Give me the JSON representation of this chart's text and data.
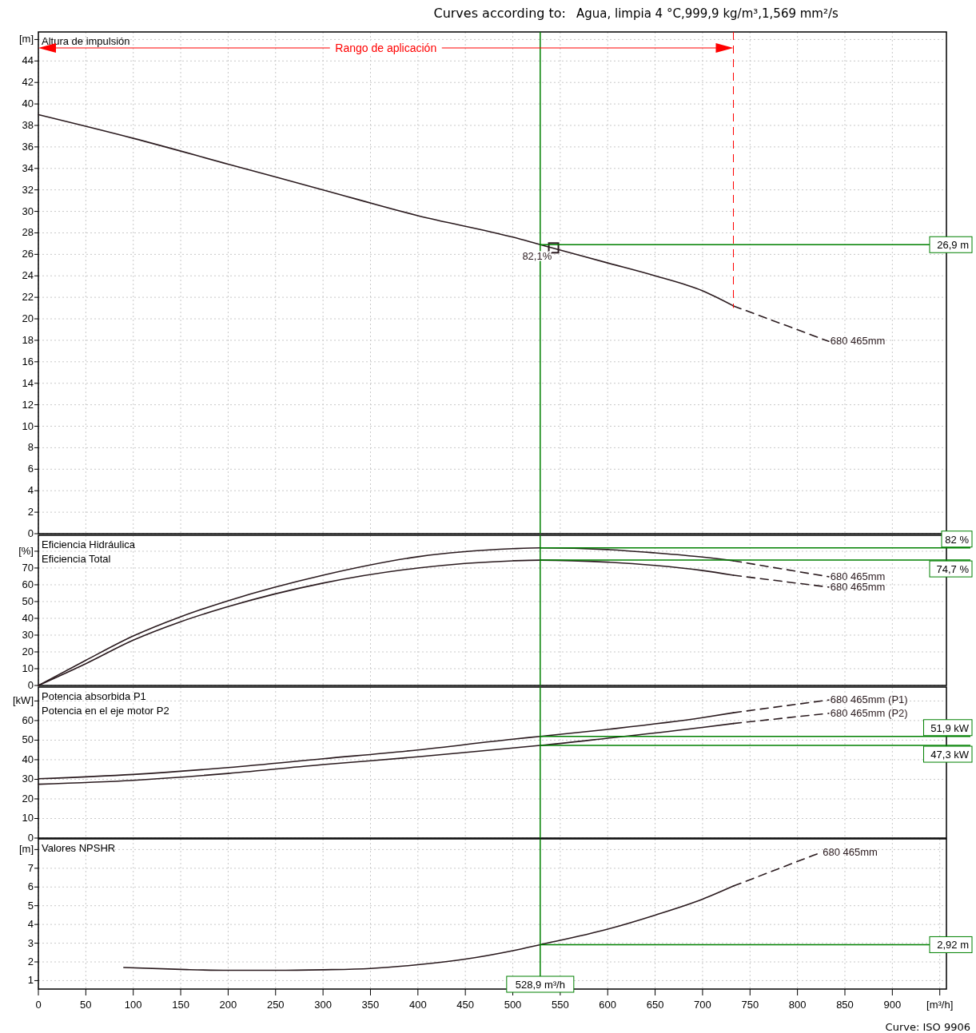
{
  "chart_data": [
    {
      "type": "line",
      "title": "Curves according to:",
      "subtitle": "Agua, limpia 4 °C,999,9 kg/m³,1,569 mm²/s",
      "ylabel": "Altura de impulsión",
      "xlim": [
        0,
        957
      ],
      "xticks": [
        0,
        50,
        100,
        150,
        200,
        250,
        300,
        350,
        400,
        450,
        500,
        550,
        600,
        650,
        700,
        750,
        800,
        850,
        900
      ],
      "ylim": [
        0,
        46.7
      ],
      "yticks": [
        0,
        2,
        4,
        6,
        8,
        10,
        12,
        14,
        16,
        18,
        20,
        22,
        24,
        26,
        28,
        30,
        32,
        34,
        36,
        38,
        40,
        42,
        44,
        {
          "value": 46,
          "label": "[m]"
        }
      ],
      "tick_labels": "y",
      "grid": true,
      "series": [
        {
          "color": "#2a1a1e",
          "x": [
            0,
            100,
            200,
            300,
            400,
            500,
            528.9,
            600,
            650,
            700,
            732.5
          ],
          "values": [
            39,
            36.8,
            34.4,
            32.0,
            29.6,
            27.6,
            26.9,
            25.2,
            24.0,
            22.6,
            21.2
          ]
        },
        {
          "name": "680 465mm",
          "color": "#2a1a1e",
          "line_style": "dashed",
          "x": [
            732.5,
            833
          ],
          "values": [
            21.2,
            17.9
          ]
        },
        {
          "type": "scatter",
          "marker": "square",
          "color": "#2a1a1e",
          "x": [
            543
          ],
          "values": [
            26.6
          ]
        }
      ],
      "ref_lines": [
        {
          "axis": "x",
          "value": 528.9,
          "color": "#008000"
        },
        {
          "axis": "y",
          "value": 26.9,
          "label": "26,9 m",
          "color": "#008000"
        },
        {
          "axis": "x",
          "value": 732.5,
          "label": "Rango de aplicación",
          "color": "#ff0000",
          "line_style": "dashed"
        }
      ],
      "annotations": [
        {
          "text": "82,1%",
          "x": 528.9,
          "y": 26.9
        }
      ]
    },
    {
      "type": "line",
      "ylabel": "Eficiencia Hidráulica\nEficiencia Total",
      "xlim": [
        0,
        957
      ],
      "xticks": [
        0,
        50,
        100,
        150,
        200,
        250,
        300,
        350,
        400,
        450,
        500,
        550,
        600,
        650,
        700,
        750,
        800,
        850,
        900
      ],
      "ylim": [
        0,
        89.5
      ],
      "yticks": [
        0,
        10,
        20,
        30,
        40,
        50,
        60,
        70,
        {
          "value": 80,
          "label": "[%]"
        }
      ],
      "tick_labels": "y",
      "grid": true,
      "series": [
        {
          "color": "#2a1a1e",
          "x": [
            0,
            50,
            100,
            150,
            200,
            300,
            400,
            500,
            528.9,
            600,
            650,
            700,
            732.5
          ],
          "values": [
            0,
            15,
            29.5,
            41,
            50.5,
            65.7,
            76.7,
            81.5,
            82,
            81,
            79,
            76.5,
            74.3
          ]
        },
        {
          "name": "680 465mm",
          "color": "#2a1a1e",
          "line_style": "dashed",
          "x": [
            732.5,
            833
          ],
          "values": [
            74.3,
            64.8
          ]
        },
        {
          "color": "#2a1a1e",
          "x": [
            0,
            50,
            100,
            150,
            200,
            300,
            400,
            500,
            528.9,
            600,
            650,
            700,
            732.5
          ],
          "values": [
            0,
            13,
            27,
            38,
            47,
            61,
            70,
            74.3,
            74.7,
            73.5,
            71.5,
            68.5,
            65.7
          ]
        },
        {
          "name": "680 465mm",
          "color": "#2a1a1e",
          "line_style": "dashed",
          "x": [
            732.5,
            833
          ],
          "values": [
            65.7,
            58.6
          ]
        }
      ],
      "ref_lines": [
        {
          "axis": "x",
          "value": 528.9,
          "color": "#008000"
        },
        {
          "axis": "y",
          "value": 82,
          "label": "82 %",
          "color": "#008000"
        },
        {
          "axis": "y",
          "value": 74.7,
          "label": "74,7 %",
          "color": "#008000"
        }
      ]
    },
    {
      "type": "line",
      "ylabel": "Potencia absorbida P1\nPotencia en el eje motor P2",
      "xlim": [
        0,
        957
      ],
      "xticks": [
        0,
        50,
        100,
        150,
        200,
        250,
        300,
        350,
        400,
        450,
        500,
        550,
        600,
        650,
        700,
        750,
        800,
        850,
        900
      ],
      "ylim": [
        0,
        77.1
      ],
      "yticks": [
        0,
        10,
        20,
        30,
        40,
        50,
        60,
        {
          "value": 70,
          "label": "[kW]"
        }
      ],
      "tick_labels": "y",
      "grid": true,
      "series": [
        {
          "color": "#2a1a1e",
          "x": [
            0,
            100,
            200,
            300,
            400,
            500,
            528.9,
            600,
            700,
            732.5
          ],
          "values": [
            30.3,
            32.5,
            36,
            40.5,
            45,
            50.5,
            51.9,
            55.5,
            61.5,
            64
          ]
        },
        {
          "name": "680 465mm (P1)",
          "color": "#2a1a1e",
          "line_style": "dashed",
          "x": [
            732.5,
            833
          ],
          "values": [
            64,
            70.5
          ]
        },
        {
          "color": "#2a1a1e",
          "x": [
            0,
            100,
            200,
            300,
            400,
            500,
            528.9,
            600,
            700,
            732.5
          ],
          "values": [
            27.5,
            29.5,
            33,
            37.5,
            41.5,
            46,
            47.3,
            51,
            56.5,
            58.5
          ]
        },
        {
          "name": "680 465mm (P2)",
          "color": "#2a1a1e",
          "line_style": "dashed",
          "x": [
            732.5,
            833
          ],
          "values": [
            58.5,
            63.7
          ]
        }
      ],
      "ref_lines": [
        {
          "axis": "x",
          "value": 528.9,
          "color": "#008000"
        },
        {
          "axis": "y",
          "value": 51.9,
          "label": "51,9 kW",
          "color": "#008000"
        },
        {
          "axis": "y",
          "value": 47.3,
          "label": "47,3 kW",
          "color": "#008000"
        }
      ]
    },
    {
      "type": "line",
      "ylabel": "Valores NPSHR",
      "xlim": [
        0,
        957
      ],
      "xticks": [
        0,
        50,
        100,
        150,
        200,
        250,
        300,
        350,
        400,
        450,
        500,
        550,
        600,
        650,
        700,
        750,
        800,
        850,
        900,
        {
          "value": 950,
          "label": "[m³/h]"
        }
      ],
      "ylim": [
        0.55,
        8.57
      ],
      "yticks": [
        1,
        2,
        3,
        4,
        5,
        6,
        7,
        {
          "value": 8,
          "label": "[m]"
        }
      ],
      "grid": true,
      "series": [
        {
          "color": "#2a1a1e",
          "x": [
            90,
            150,
            200,
            250,
            300,
            350,
            400,
            450,
            500,
            528.9,
            600,
            650,
            700,
            732.5
          ],
          "values": [
            1.7,
            1.6,
            1.55,
            1.55,
            1.58,
            1.65,
            1.85,
            2.15,
            2.6,
            2.92,
            3.75,
            4.5,
            5.35,
            6.05
          ]
        },
        {
          "name": "680 465mm",
          "color": "#2a1a1e",
          "line_style": "dashed",
          "x": [
            732.5,
            825
          ],
          "values": [
            6.05,
            7.85
          ]
        }
      ],
      "ref_lines": [
        {
          "axis": "x",
          "value": 528.9,
          "label": "528,9 m³/h",
          "color": "#008000"
        },
        {
          "axis": "y",
          "value": 2.92,
          "label": "2,92 m",
          "color": "#008000"
        }
      ],
      "annotations": [
        "Curve: ISO 9906"
      ]
    }
  ]
}
